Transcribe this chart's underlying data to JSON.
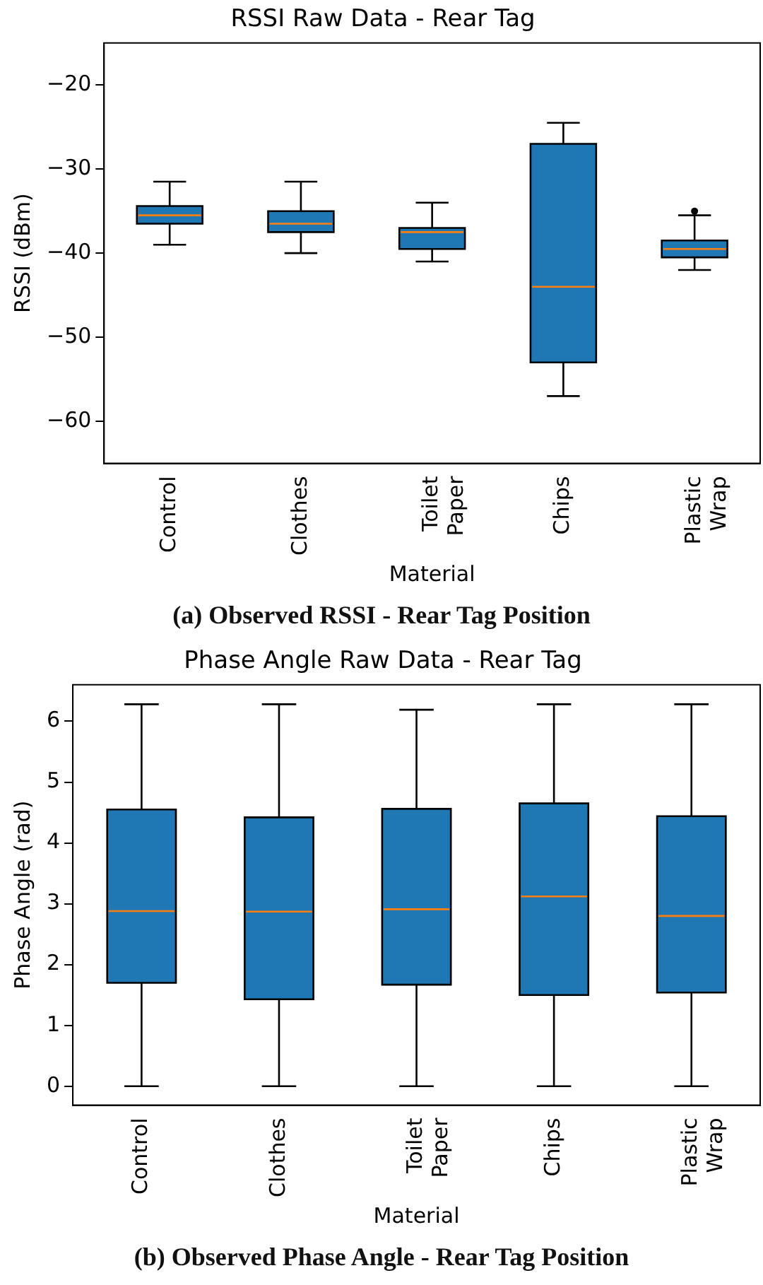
{
  "chart_data": [
    {
      "type": "box",
      "title": "RSSI Raw Data - Rear Tag",
      "xlabel": "Material",
      "ylabel": "RSSI (dBm)",
      "categories": [
        "Control",
        "Clothes",
        "Toilet Paper",
        "Chips",
        "Plastic Wrap"
      ],
      "ylim": [
        -65,
        -15
      ],
      "yticks": [
        -60,
        -50,
        -40,
        -30,
        -20
      ],
      "grid": false,
      "legend": false,
      "annotations": [
        "(a) Observed RSSI - Rear Tag Position"
      ],
      "series": [
        {
          "color": "#1f77b4",
          "boxes": [
            {
              "low": -39,
              "q1": -36.5,
              "median": -35.5,
              "q3": -34.4,
              "high": -31.5
            },
            {
              "low": -40,
              "q1": -37.5,
              "median": -36.5,
              "q3": -35,
              "high": -31.5
            },
            {
              "low": -41,
              "q1": -39.5,
              "median": -37.5,
              "q3": -37,
              "high": -34
            },
            {
              "low": -57,
              "q1": -53,
              "median": -44,
              "q3": -27,
              "high": -24.5
            },
            {
              "low": -42,
              "q1": -40.5,
              "median": -39.5,
              "q3": -38.5,
              "high": -35.5,
              "outliers": [
                -35
              ]
            }
          ]
        }
      ]
    },
    {
      "type": "box",
      "title": "Phase Angle Raw Data - Rear Tag",
      "xlabel": "Material",
      "ylabel": "Phase Angle (rad)",
      "categories": [
        "Control",
        "Clothes",
        "Toilet Paper",
        "Chips",
        "Plastic Wrap"
      ],
      "ylim": [
        -0.31,
        6.6
      ],
      "yticks": [
        0,
        1,
        2,
        3,
        4,
        5,
        6
      ],
      "grid": false,
      "legend": false,
      "annotations": [
        "(b) Observed Phase Angle - Rear Tag Position"
      ],
      "series": [
        {
          "color": "#1f77b4",
          "boxes": [
            {
              "low": 0,
              "q1": 1.7,
              "median": 2.88,
              "q3": 4.55,
              "high": 6.28
            },
            {
              "low": 0,
              "q1": 1.43,
              "median": 2.87,
              "q3": 4.42,
              "high": 6.28
            },
            {
              "low": 0,
              "q1": 1.67,
              "median": 2.91,
              "q3": 4.56,
              "high": 6.19
            },
            {
              "low": 0,
              "q1": 1.5,
              "median": 3.12,
              "q3": 4.65,
              "high": 6.28
            },
            {
              "low": 0,
              "q1": 1.54,
              "median": 2.8,
              "q3": 4.44,
              "high": 6.28
            }
          ]
        }
      ]
    }
  ]
}
